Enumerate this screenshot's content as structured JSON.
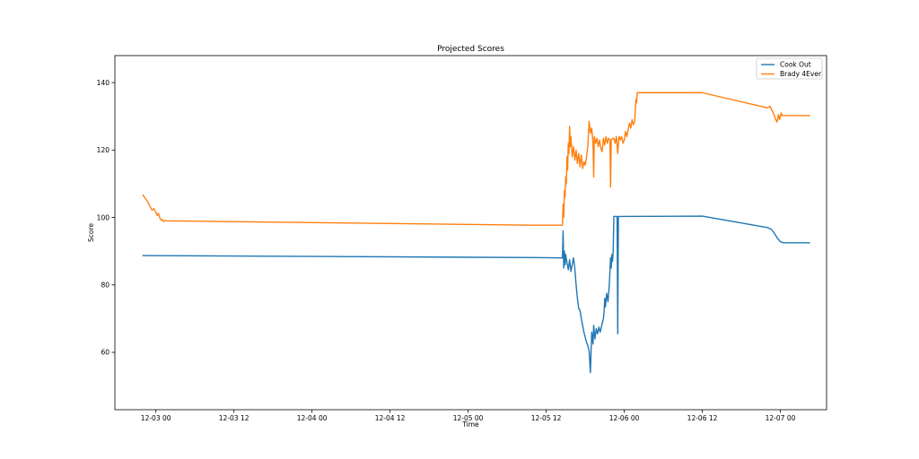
{
  "chart_data": {
    "type": "line",
    "title": "Projected Scores",
    "xlabel": "Time",
    "ylabel": "Score",
    "x_ticks": [
      "12-03 00",
      "12-03 12",
      "12-04 00",
      "12-04 12",
      "12-05 00",
      "12-05 12",
      "12-06 00",
      "12-06 12",
      "12-07 00"
    ],
    "x_tick_hours": [
      0,
      12,
      24,
      36,
      48,
      60,
      72,
      84,
      96
    ],
    "xlim_hours": [
      -6.3,
      103.1
    ],
    "y_ticks": [
      60,
      80,
      100,
      120,
      140
    ],
    "ylim": [
      43,
      148
    ],
    "legend": {
      "placement": "top-right",
      "entries": [
        "Cook Out",
        "Brady 4Ever"
      ]
    },
    "grid": false,
    "series": [
      {
        "name": "Cook Out",
        "color": "#1f77b4",
        "points": [
          [
            -2.0,
            88.7
          ],
          [
            58.5,
            88.1
          ],
          [
            62.5,
            88.0
          ],
          [
            62.6,
            96.0
          ],
          [
            62.7,
            85.0
          ],
          [
            62.8,
            90.0
          ],
          [
            62.9,
            86.0
          ],
          [
            63.0,
            89.0
          ],
          [
            63.2,
            86.5
          ],
          [
            63.4,
            84.5
          ],
          [
            63.6,
            87.5
          ],
          [
            63.8,
            84.0
          ],
          [
            64.0,
            86.0
          ],
          [
            64.2,
            88.0
          ],
          [
            64.4,
            85.0
          ],
          [
            64.6,
            80.0
          ],
          [
            64.8,
            76.0
          ],
          [
            65.0,
            73.0
          ],
          [
            65.2,
            72.5
          ],
          [
            65.4,
            70.0
          ],
          [
            65.6,
            68.0
          ],
          [
            65.8,
            66.0
          ],
          [
            66.0,
            64.5
          ],
          [
            66.2,
            63.0
          ],
          [
            66.4,
            62.0
          ],
          [
            66.6,
            60.5
          ],
          [
            66.8,
            54.0
          ],
          [
            66.9,
            60.0
          ],
          [
            67.0,
            66.0
          ],
          [
            67.2,
            62.5
          ],
          [
            67.3,
            68.0
          ],
          [
            67.5,
            64.0
          ],
          [
            67.7,
            67.0
          ],
          [
            67.9,
            65.5
          ],
          [
            68.1,
            67.5
          ],
          [
            68.3,
            66.0
          ],
          [
            68.6,
            68.5
          ],
          [
            68.8,
            70.0
          ],
          [
            68.9,
            72.0
          ],
          [
            69.0,
            76.0
          ],
          [
            69.1,
            73.5
          ],
          [
            69.3,
            77.5
          ],
          [
            69.5,
            75.0
          ],
          [
            69.7,
            80.0
          ],
          [
            69.8,
            84.0
          ],
          [
            69.9,
            88.0
          ],
          [
            70.0,
            85.0
          ],
          [
            70.1,
            89.0
          ],
          [
            70.2,
            87.0
          ],
          [
            70.3,
            90.0
          ],
          [
            70.4,
            100.3
          ],
          [
            70.5,
            100.3
          ],
          [
            70.9,
            100.3
          ],
          [
            71.0,
            65.5
          ],
          [
            71.1,
            100.3
          ],
          [
            84.0,
            100.4
          ],
          [
            94.0,
            97.0
          ],
          [
            94.6,
            96.5
          ],
          [
            95.0,
            95.5
          ],
          [
            95.5,
            94.0
          ],
          [
            96.0,
            92.8
          ],
          [
            96.5,
            92.5
          ],
          [
            100.5,
            92.5
          ]
        ]
      },
      {
        "name": "Brady 4Ever",
        "color": "#ff7f0e",
        "points": [
          [
            -2.0,
            106.7
          ],
          [
            -1.6,
            105.6
          ],
          [
            -1.2,
            104.5
          ],
          [
            -0.9,
            103.3
          ],
          [
            -0.6,
            102.2
          ],
          [
            -0.3,
            102.6
          ],
          [
            0.0,
            101.6
          ],
          [
            0.2,
            100.6
          ],
          [
            0.4,
            101.2
          ],
          [
            0.6,
            99.9
          ],
          [
            0.8,
            99.2
          ],
          [
            1.0,
            99.4
          ],
          [
            1.2,
            98.8
          ],
          [
            1.4,
            99.1
          ],
          [
            1.6,
            99.0
          ],
          [
            58.0,
            97.7
          ],
          [
            62.5,
            97.7
          ],
          [
            62.6,
            104.0
          ],
          [
            62.7,
            100.0
          ],
          [
            62.8,
            108.0
          ],
          [
            62.9,
            106.0
          ],
          [
            63.0,
            112.0
          ],
          [
            63.1,
            110.0
          ],
          [
            63.2,
            118.0
          ],
          [
            63.3,
            114.0
          ],
          [
            63.4,
            122.0
          ],
          [
            63.5,
            119.0
          ],
          [
            63.6,
            127.0
          ],
          [
            63.7,
            121.0
          ],
          [
            63.8,
            124.0
          ],
          [
            64.0,
            118.0
          ],
          [
            64.2,
            121.0
          ],
          [
            64.4,
            117.0
          ],
          [
            64.6,
            120.0
          ],
          [
            64.8,
            116.0
          ],
          [
            65.0,
            119.0
          ],
          [
            65.2,
            115.0
          ],
          [
            65.4,
            118.5
          ],
          [
            65.6,
            114.5
          ],
          [
            65.8,
            116.5
          ],
          [
            66.0,
            115.5
          ],
          [
            66.2,
            118.0
          ],
          [
            66.4,
            121.0
          ],
          [
            66.6,
            128.5
          ],
          [
            66.8,
            125.0
          ],
          [
            67.0,
            126.5
          ],
          [
            67.2,
            122.0
          ],
          [
            67.3,
            112.0
          ],
          [
            67.4,
            124.0
          ],
          [
            67.6,
            122.0
          ],
          [
            67.8,
            123.5
          ],
          [
            68.0,
            121.0
          ],
          [
            68.2,
            123.0
          ],
          [
            68.4,
            120.5
          ],
          [
            68.6,
            119.5
          ],
          [
            68.8,
            123.5
          ],
          [
            69.0,
            121.5
          ],
          [
            69.2,
            124.0
          ],
          [
            69.4,
            122.0
          ],
          [
            69.6,
            123.5
          ],
          [
            69.8,
            122.8
          ],
          [
            69.9,
            109.0
          ],
          [
            70.0,
            123.2
          ],
          [
            70.4,
            123.5
          ],
          [
            70.6,
            122.0
          ],
          [
            70.8,
            124.0
          ],
          [
            71.0,
            119.0
          ],
          [
            71.2,
            124.0
          ],
          [
            71.4,
            123.0
          ],
          [
            71.6,
            124.0
          ],
          [
            71.8,
            122.0
          ],
          [
            72.0,
            123.0
          ],
          [
            72.2,
            125.5
          ],
          [
            72.4,
            124.0
          ],
          [
            72.6,
            126.0
          ],
          [
            72.8,
            128.0
          ],
          [
            73.0,
            126.5
          ],
          [
            73.2,
            129.0
          ],
          [
            73.4,
            127.5
          ],
          [
            73.6,
            128.5
          ],
          [
            73.8,
            135.0
          ],
          [
            73.9,
            134.0
          ],
          [
            74.0,
            137.0
          ],
          [
            84.0,
            137.0
          ],
          [
            94.0,
            132.5
          ],
          [
            94.4,
            133.0
          ],
          [
            94.7,
            131.8
          ],
          [
            95.0,
            130.5
          ],
          [
            95.3,
            129.0
          ],
          [
            95.5,
            128.3
          ],
          [
            95.7,
            130.5
          ],
          [
            95.9,
            129.0
          ],
          [
            96.1,
            131.0
          ],
          [
            96.3,
            130.2
          ],
          [
            100.5,
            130.2
          ]
        ]
      }
    ]
  }
}
